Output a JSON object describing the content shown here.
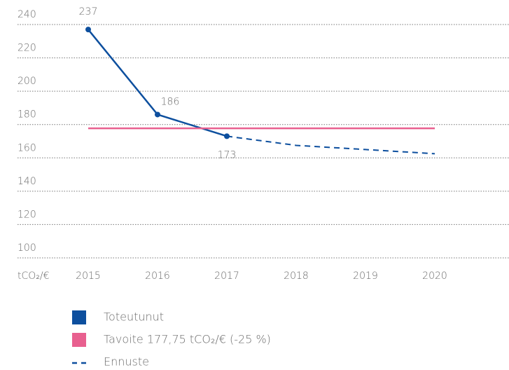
{
  "chart_data": {
    "type": "line",
    "ylabel": "tCO₂/€",
    "x": [
      2015,
      2016,
      2017,
      2018,
      2019,
      2020
    ],
    "xlim": [
      2014,
      2021
    ],
    "xticks": [
      2015,
      2016,
      2017,
      2018,
      2019,
      2020
    ],
    "ylim": [
      100,
      240
    ],
    "yticks": [
      100,
      120,
      140,
      160,
      180,
      200,
      220,
      240
    ],
    "grid": true,
    "series": [
      {
        "name": "Toteutunut",
        "color": "#0d4f9e",
        "style": "solid",
        "markers": true,
        "labels": true,
        "values": [
          237,
          186,
          173,
          null,
          null,
          null
        ]
      },
      {
        "name": "Tavoite 177,75 tCO₂/€ (-25 %)",
        "color": "#e8608f",
        "style": "solid",
        "values": [
          177.75,
          177.75,
          177.75,
          177.75,
          177.75,
          177.75
        ]
      },
      {
        "name": "Ennuste",
        "color": "#0d4f9e",
        "style": "dashed",
        "values": [
          null,
          null,
          173,
          167.5,
          165,
          162.5
        ]
      }
    ]
  }
}
